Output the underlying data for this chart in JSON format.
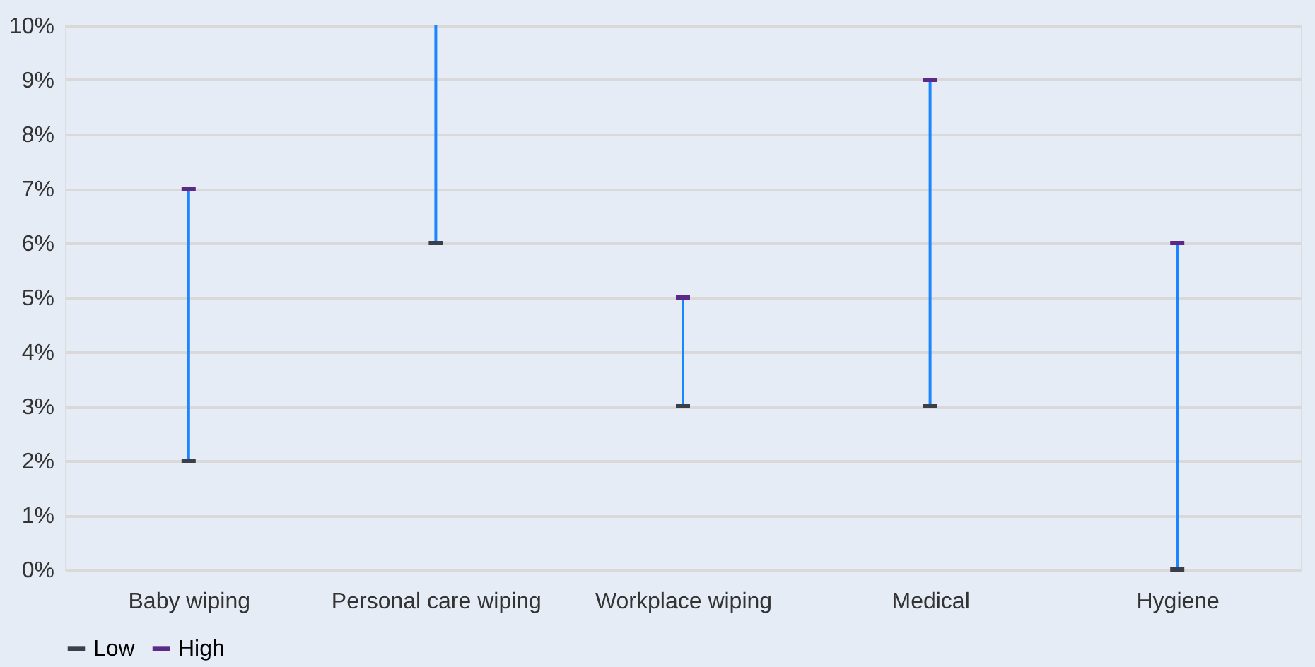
{
  "chart_data": {
    "type": "scatter",
    "categories": [
      "Baby wiping",
      "Personal care wiping",
      "Workplace wiping",
      "Medical",
      "Hygiene"
    ],
    "series": [
      {
        "type": "line",
        "color": "#1a85ff",
        "x": [
          "Baby wiping",
          "Baby wiping"
        ],
        "values": [
          2,
          7
        ]
      },
      {
        "type": "line",
        "color": "#1a85ff",
        "x": [
          "Personal care wiping",
          "Personal care wiping"
        ],
        "values": [
          6,
          10
        ]
      },
      {
        "type": "line",
        "color": "#1a85ff",
        "x": [
          "Workplace wiping",
          "Workplace wiping"
        ],
        "values": [
          3,
          5
        ]
      },
      {
        "type": "line",
        "color": "#1a85ff",
        "x": [
          "Medical",
          "Medical"
        ],
        "values": [
          3,
          9
        ]
      },
      {
        "type": "line",
        "color": "#1a85ff",
        "x": [
          "Hygiene",
          "Hygiene"
        ],
        "values": [
          0,
          6
        ]
      },
      {
        "name": "Low",
        "color": "#3a3f4a",
        "values": [
          2,
          6,
          3,
          3,
          0
        ]
      },
      {
        "name": "High",
        "color": "#5b2a86",
        "values": [
          7,
          null,
          5,
          9,
          6
        ]
      }
    ],
    "ylim": [
      0,
      10
    ],
    "yticks": [
      {
        "value": 0,
        "label": "0%"
      },
      {
        "value": 1,
        "label": "1%"
      },
      {
        "value": 2,
        "label": "2%"
      },
      {
        "value": 3,
        "label": "3%"
      },
      {
        "value": 4,
        "label": "4%"
      },
      {
        "value": 5,
        "label": "5%"
      },
      {
        "value": 6,
        "label": "6%"
      },
      {
        "value": 7,
        "label": "7%"
      },
      {
        "value": 8,
        "label": "8%"
      },
      {
        "value": 9,
        "label": "9%"
      },
      {
        "value": 10,
        "label": "10%"
      }
    ],
    "grid": "y",
    "legend": "bottom"
  }
}
